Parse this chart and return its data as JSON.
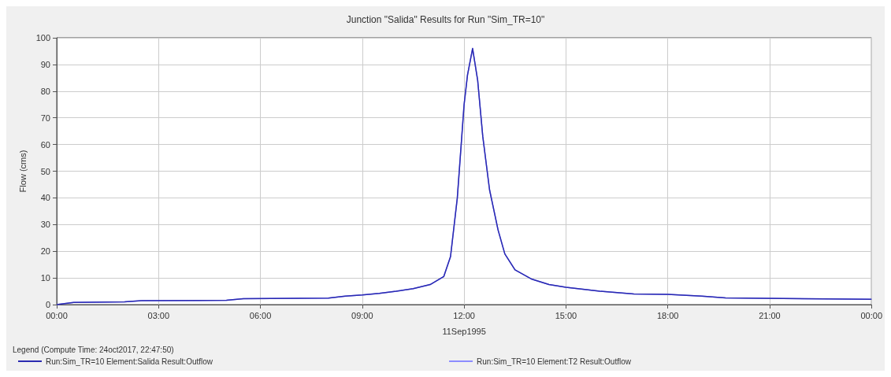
{
  "chart_data": {
    "type": "line",
    "title": "Junction \"Salida\" Results for Run \"Sim_TR=10\"",
    "xlabel": "11Sep1995",
    "ylabel": "Flow (cms)",
    "legend_title": "Legend (Compute Time: 24oct2017, 22:47:50)",
    "x": [
      0,
      0.5,
      2,
      2.5,
      5,
      5.5,
      8,
      8.5,
      9,
      9.5,
      10,
      10.5,
      11,
      11.4,
      11.6,
      11.8,
      12,
      12.1,
      12.25,
      12.4,
      12.55,
      12.75,
      13,
      13.2,
      13.5,
      14,
      14.5,
      15,
      16,
      17,
      18,
      19,
      19.7,
      24
    ],
    "series": [
      {
        "name": "Run:Sim_TR=10 Element:Salida Result:Outflow",
        "color": "#2a2ab0",
        "values": [
          0,
          0.8,
          1,
          1.5,
          1.6,
          2.2,
          2.4,
          3.2,
          3.6,
          4.2,
          5,
          6,
          7.5,
          10.5,
          18,
          40,
          75,
          86,
          96,
          84,
          63,
          43,
          28,
          19,
          13,
          9.5,
          7.5,
          6.5,
          5,
          4,
          3.8,
          3.2,
          2.5,
          2
        ]
      },
      {
        "name": "Run:Sim_TR=10 Element:T2 Result:Outflow",
        "color": "#8c8cff",
        "values": [
          0,
          0.8,
          1,
          1.5,
          1.6,
          2.2,
          2.4,
          3.2,
          3.6,
          4.2,
          5,
          6,
          7.5,
          10.5,
          18,
          40,
          75,
          86,
          96,
          84,
          63,
          43,
          28,
          19,
          13,
          9.5,
          7.5,
          6.5,
          5,
          4,
          3.8,
          3.2,
          2.5,
          2
        ]
      }
    ],
    "xlim": [
      0,
      24
    ],
    "xticks": [
      {
        "value": 0,
        "label": "00:00"
      },
      {
        "value": 3,
        "label": "03:00"
      },
      {
        "value": 6,
        "label": "06:00"
      },
      {
        "value": 9,
        "label": "09:00"
      },
      {
        "value": 12,
        "label": "12:00"
      },
      {
        "value": 15,
        "label": "15:00"
      },
      {
        "value": 18,
        "label": "18:00"
      },
      {
        "value": 21,
        "label": "21:00"
      },
      {
        "value": 24,
        "label": "00:00"
      }
    ],
    "ylim": [
      0,
      100
    ],
    "yticks": [
      0,
      10,
      20,
      30,
      40,
      50,
      60,
      70,
      80,
      90,
      100
    ],
    "grid": true,
    "legend": "bottom",
    "marker": "none",
    "line_style": "solid"
  }
}
